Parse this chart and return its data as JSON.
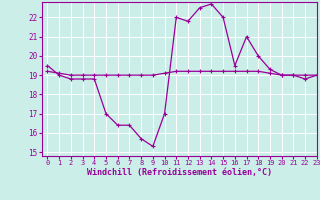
{
  "title": "",
  "xlabel": "Windchill (Refroidissement éolien,°C)",
  "ylabel": "",
  "bg_color": "#cceee8",
  "grid_color": "#ffffff",
  "line_color": "#990099",
  "xlim": [
    -0.5,
    23
  ],
  "ylim": [
    14.8,
    22.8
  ],
  "yticks": [
    15,
    16,
    17,
    18,
    19,
    20,
    21,
    22
  ],
  "xticks": [
    0,
    1,
    2,
    3,
    4,
    5,
    6,
    7,
    8,
    9,
    10,
    11,
    12,
    13,
    14,
    15,
    16,
    17,
    18,
    19,
    20,
    21,
    22,
    23
  ],
  "windchill_x": [
    0,
    1,
    2,
    3,
    4,
    5,
    6,
    7,
    8,
    9,
    10,
    11,
    12,
    13,
    14,
    15,
    16,
    17,
    18,
    19,
    20,
    21,
    22,
    23
  ],
  "windchill_y": [
    19.5,
    19.0,
    18.8,
    18.8,
    18.8,
    17.0,
    16.4,
    16.4,
    15.7,
    15.3,
    17.0,
    22.0,
    21.8,
    22.5,
    22.7,
    22.0,
    19.5,
    21.0,
    20.0,
    19.3,
    19.0,
    19.0,
    18.8,
    19.0
  ],
  "temp_x": [
    0,
    1,
    2,
    3,
    4,
    5,
    6,
    7,
    8,
    9,
    10,
    11,
    12,
    13,
    14,
    15,
    16,
    17,
    18,
    19,
    20,
    21,
    22,
    23
  ],
  "temp_y": [
    19.2,
    19.1,
    19.0,
    19.0,
    19.0,
    19.0,
    19.0,
    19.0,
    19.0,
    19.0,
    19.1,
    19.2,
    19.2,
    19.2,
    19.2,
    19.2,
    19.2,
    19.2,
    19.2,
    19.1,
    19.0,
    19.0,
    19.0,
    19.0
  ]
}
